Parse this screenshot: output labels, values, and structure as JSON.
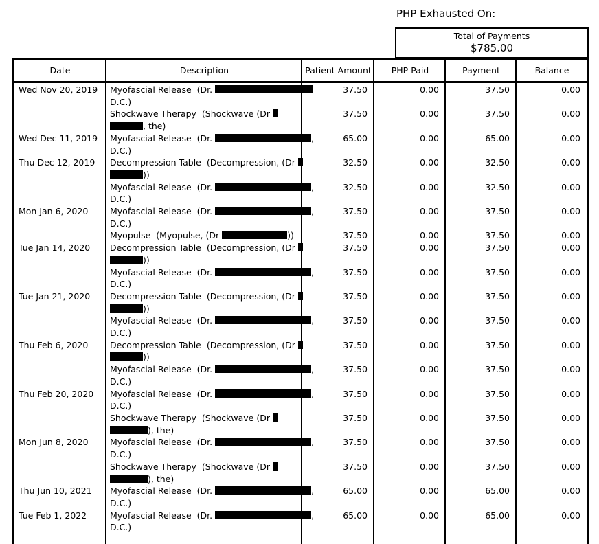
{
  "page": {
    "title": "PHP Exhausted On:",
    "total_box": {
      "label": "Total of Payments",
      "amount": "$785.00"
    }
  },
  "colors": {
    "background": "#ffffff",
    "text": "#000000",
    "border": "#000000",
    "redaction": "#000000"
  },
  "table": {
    "columns": [
      "Date",
      "Description",
      "Patient Amount",
      "PHP Paid",
      "Payment",
      "Balance"
    ],
    "rows": [
      {
        "date": "Wed Nov 20, 2019",
        "description_lines": [
          [
            {
              "text": "Myofascial Release  (Dr. "
            },
            {
              "redact": 143
            }
          ],
          [
            {
              "text": "D.C.)"
            }
          ]
        ],
        "patient_amount": "37.50",
        "php_paid": "0.00",
        "payment": "37.50",
        "balance": "0.00"
      },
      {
        "date": "",
        "description_lines": [
          [
            {
              "text": "Shockwave Therapy  (Shockwave (Dr "
            },
            {
              "redact": 8
            }
          ],
          [
            {
              "redact": 48
            },
            {
              "text": ", the)"
            }
          ]
        ],
        "patient_amount": "37.50",
        "php_paid": "0.00",
        "payment": "37.50",
        "balance": "0.00"
      },
      {
        "date": "Wed Dec 11, 2019",
        "description_lines": [
          [
            {
              "text": "Myofascial Release  (Dr. "
            },
            {
              "redact": 140
            },
            {
              "text": ","
            }
          ],
          [
            {
              "text": "D.C.)"
            }
          ]
        ],
        "patient_amount": "65.00",
        "php_paid": "0.00",
        "payment": "65.00",
        "balance": "0.00"
      },
      {
        "date": "Thu Dec 12, 2019",
        "description_lines": [
          [
            {
              "text": "Decompression Table  (Decompression, (Dr "
            },
            {
              "redact": 7
            }
          ],
          [
            {
              "redact": 48
            },
            {
              "text": "))"
            }
          ]
        ],
        "patient_amount": "32.50",
        "php_paid": "0.00",
        "payment": "32.50",
        "balance": "0.00"
      },
      {
        "date": "",
        "description_lines": [
          [
            {
              "text": "Myofascial Release  (Dr. "
            },
            {
              "redact": 140
            },
            {
              "text": ","
            }
          ],
          [
            {
              "text": "D.C.)"
            }
          ]
        ],
        "patient_amount": "32.50",
        "php_paid": "0.00",
        "payment": "32.50",
        "balance": "0.00"
      },
      {
        "date": "Mon Jan 6, 2020",
        "description_lines": [
          [
            {
              "text": "Myofascial Release  (Dr. "
            },
            {
              "redact": 140
            },
            {
              "text": ","
            }
          ],
          [
            {
              "text": "D.C.)"
            }
          ]
        ],
        "patient_amount": "37.50",
        "php_paid": "0.00",
        "payment": "37.50",
        "balance": "0.00"
      },
      {
        "date": "",
        "description_lines": [
          [
            {
              "text": "Myopulse  (Myopulse, (Dr "
            },
            {
              "redact": 95
            },
            {
              "text": "))"
            }
          ]
        ],
        "patient_amount": "37.50",
        "php_paid": "0.00",
        "payment": "37.50",
        "balance": "0.00"
      },
      {
        "date": "Tue Jan 14, 2020",
        "description_lines": [
          [
            {
              "text": "Decompression Table  (Decompression, (Dr "
            },
            {
              "redact": 7
            }
          ],
          [
            {
              "redact": 48
            },
            {
              "text": "))"
            }
          ]
        ],
        "patient_amount": "37.50",
        "php_paid": "0.00",
        "payment": "37.50",
        "balance": "0.00"
      },
      {
        "date": "",
        "description_lines": [
          [
            {
              "text": "Myofascial Release  (Dr. "
            },
            {
              "redact": 140
            },
            {
              "text": ","
            }
          ],
          [
            {
              "text": "D.C.)"
            }
          ]
        ],
        "patient_amount": "37.50",
        "php_paid": "0.00",
        "payment": "37.50",
        "balance": "0.00"
      },
      {
        "date": "Tue Jan 21, 2020",
        "description_lines": [
          [
            {
              "text": "Decompression Table  (Decompression, (Dr "
            },
            {
              "redact": 7
            }
          ],
          [
            {
              "redact": 48
            },
            {
              "text": "))"
            }
          ]
        ],
        "patient_amount": "37.50",
        "php_paid": "0.00",
        "payment": "37.50",
        "balance": "0.00"
      },
      {
        "date": "",
        "description_lines": [
          [
            {
              "text": "Myofascial Release  (Dr. "
            },
            {
              "redact": 140
            },
            {
              "text": ","
            }
          ],
          [
            {
              "text": "D.C.)"
            }
          ]
        ],
        "patient_amount": "37.50",
        "php_paid": "0.00",
        "payment": "37.50",
        "balance": "0.00"
      },
      {
        "date": "Thu Feb 6, 2020",
        "description_lines": [
          [
            {
              "text": "Decompression Table  (Decompression, (Dr "
            },
            {
              "redact": 7
            }
          ],
          [
            {
              "redact": 48
            },
            {
              "text": "))"
            }
          ]
        ],
        "patient_amount": "37.50",
        "php_paid": "0.00",
        "payment": "37.50",
        "balance": "0.00"
      },
      {
        "date": "",
        "description_lines": [
          [
            {
              "text": "Myofascial Release  (Dr. "
            },
            {
              "redact": 140
            },
            {
              "text": ","
            }
          ],
          [
            {
              "text": "D.C.)"
            }
          ]
        ],
        "patient_amount": "37.50",
        "php_paid": "0.00",
        "payment": "37.50",
        "balance": "0.00"
      },
      {
        "date": "Thu Feb 20, 2020",
        "description_lines": [
          [
            {
              "text": "Myofascial Release  (Dr. "
            },
            {
              "redact": 140
            },
            {
              "text": ","
            }
          ],
          [
            {
              "text": "D.C.)"
            }
          ]
        ],
        "patient_amount": "37.50",
        "php_paid": "0.00",
        "payment": "37.50",
        "balance": "0.00"
      },
      {
        "date": "",
        "description_lines": [
          [
            {
              "text": "Shockwave Therapy  (Shockwave (Dr "
            },
            {
              "redact": 8
            }
          ],
          [
            {
              "redact": 55
            },
            {
              "text": "), the)"
            }
          ]
        ],
        "patient_amount": "37.50",
        "php_paid": "0.00",
        "payment": "37.50",
        "balance": "0.00"
      },
      {
        "date": "Mon Jun 8, 2020",
        "description_lines": [
          [
            {
              "text": "Myofascial Release  (Dr. "
            },
            {
              "redact": 140
            },
            {
              "text": ","
            }
          ],
          [
            {
              "text": "D.C.)"
            }
          ]
        ],
        "patient_amount": "37.50",
        "php_paid": "0.00",
        "payment": "37.50",
        "balance": "0.00"
      },
      {
        "date": "",
        "description_lines": [
          [
            {
              "text": "Shockwave Therapy  (Shockwave (Dr "
            },
            {
              "redact": 8
            }
          ],
          [
            {
              "redact": 55
            },
            {
              "text": "), the)"
            }
          ]
        ],
        "patient_amount": "37.50",
        "php_paid": "0.00",
        "payment": "37.50",
        "balance": "0.00"
      },
      {
        "date": "Thu Jun 10, 2021",
        "description_lines": [
          [
            {
              "text": "Myofascial Release  (Dr. "
            },
            {
              "redact": 140
            },
            {
              "text": ","
            }
          ],
          [
            {
              "text": "D.C.)"
            }
          ]
        ],
        "patient_amount": "65.00",
        "php_paid": "0.00",
        "payment": "65.00",
        "balance": "0.00"
      },
      {
        "date": "Tue Feb 1, 2022",
        "description_lines": [
          [
            {
              "text": "Myofascial Release  (Dr. "
            },
            {
              "redact": 140
            },
            {
              "text": ","
            }
          ],
          [
            {
              "text": "D.C.)"
            }
          ]
        ],
        "patient_amount": "65.00",
        "php_paid": "0.00",
        "payment": "65.00",
        "balance": "0.00"
      }
    ]
  }
}
